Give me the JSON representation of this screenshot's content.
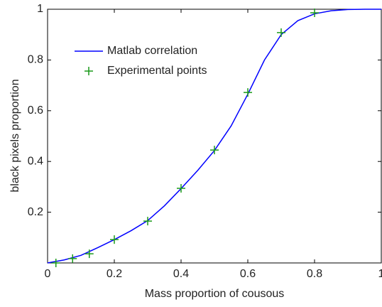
{
  "chart_data": {
    "type": "line",
    "x_label": "Mass proportion of cousous",
    "y_label": "black pixels proportion",
    "xlim": [
      0,
      1
    ],
    "ylim": [
      0,
      1
    ],
    "xticks": [
      0,
      0.2,
      0.4,
      0.6,
      0.8,
      1
    ],
    "yticks": [
      0.2,
      0.4,
      0.6,
      0.8,
      1
    ],
    "legend": "upper left",
    "series": [
      {
        "name": "Matlab correlation",
        "type": "line",
        "color": "#0000ff",
        "x": [
          0,
          0.05,
          0.1,
          0.15,
          0.2,
          0.25,
          0.3,
          0.35,
          0.4,
          0.45,
          0.5,
          0.55,
          0.6,
          0.65,
          0.7,
          0.75,
          0.8,
          0.85,
          0.9,
          0.95,
          1
        ],
        "values": [
          0,
          0.012,
          0.03,
          0.06,
          0.092,
          0.127,
          0.167,
          0.225,
          0.293,
          0.365,
          0.443,
          0.54,
          0.665,
          0.8,
          0.9,
          0.955,
          0.982,
          0.994,
          0.999,
          1,
          1
        ]
      },
      {
        "name": "Experimental points",
        "type": "scatter",
        "marker": "+",
        "color": "#1a9a1a",
        "x": [
          0.025,
          0.075,
          0.125,
          0.2,
          0.3,
          0.4,
          0.5,
          0.6,
          0.7,
          0.8
        ],
        "values": [
          0,
          0.017,
          0.036,
          0.092,
          0.165,
          0.294,
          0.445,
          0.672,
          0.908,
          0.986
        ]
      }
    ]
  }
}
